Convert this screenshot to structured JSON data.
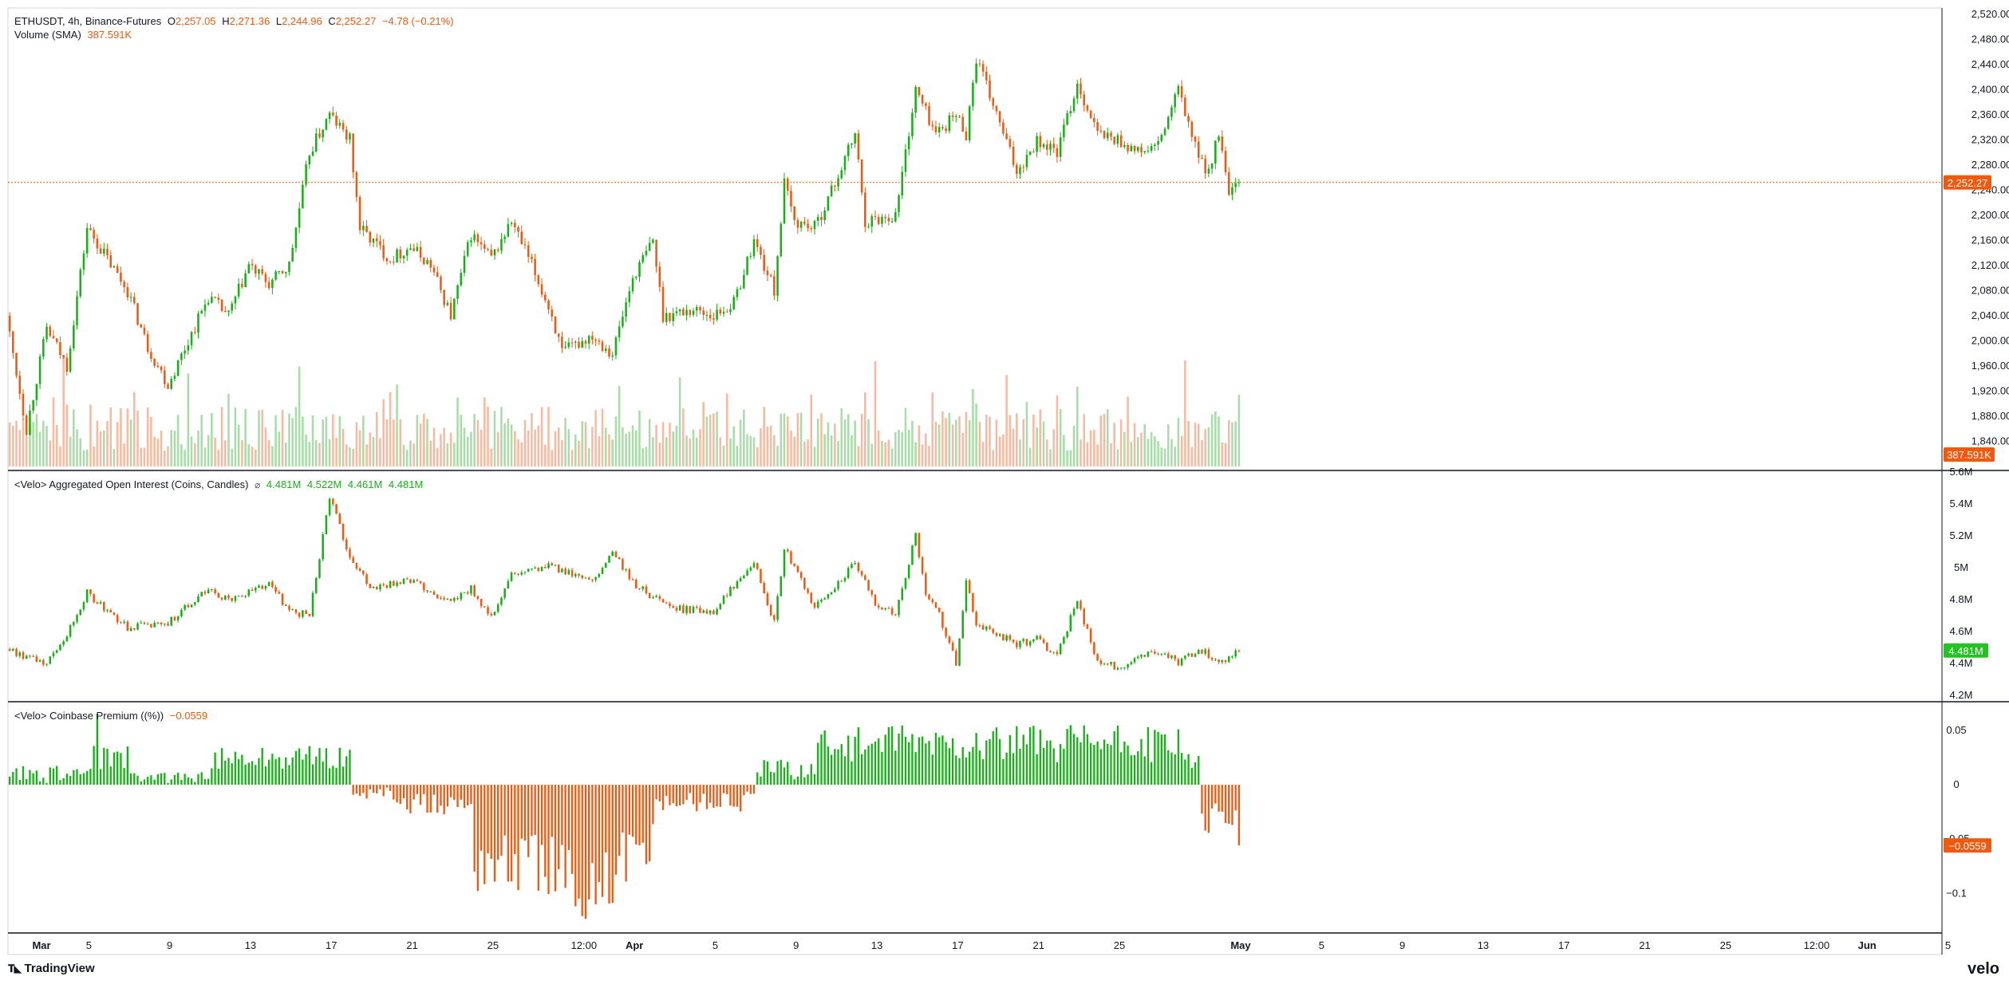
{
  "legend": {
    "symbol": "ETHUSDT, 4h, Binance-Futures",
    "o_label": "O",
    "o_value": "2,257.05",
    "h_label": "H",
    "h_value": "2,271.36",
    "l_label": "L",
    "l_value": "2,244.96",
    "c_label": "C",
    "c_value": "2,252.27",
    "change": "−4.78 (−0.21%)",
    "volume_label": "Volume (SMA)",
    "volume_value": "387.591K",
    "oi_label": "<Velo> Aggregated Open Interest (Coins, Candles)",
    "oi_icon": "link-icon",
    "oi_o": "4.481M",
    "oi_h": "4.522M",
    "oi_l": "4.461M",
    "oi_c": "4.481M",
    "premium_label": "<Velo> Coinbase Premium ((%))",
    "premium_value": "−0.0559"
  },
  "badges": {
    "price": "2,252.27",
    "volume": "387.591K",
    "oi": "4.481M",
    "premium": "−0.0559"
  },
  "colors": {
    "up": "#15b215",
    "down": "#f0590e",
    "volume_up": "#a8dca8",
    "volume_down": "#f7b9a0",
    "oi_badge": "#22c322",
    "price_line": "#f0590e"
  },
  "footer": {
    "brand": "TradingView",
    "brand_icon": "tradingview-logo-icon",
    "velo": "velo"
  },
  "chart_data": [
    {
      "type": "candlestick",
      "name": "price",
      "interval": "4h",
      "ylim": [
        1800,
        2530
      ],
      "y_ticks": [
        "2,520.00",
        "2,480.00",
        "2,440.00",
        "2,400.00",
        "2,360.00",
        "2,320.00",
        "2,280.00",
        "2,240.00",
        "2,200.00",
        "2,160.00",
        "2,120.00",
        "2,080.00",
        "2,040.00",
        "2,000.00",
        "1,960.00",
        "1,920.00",
        "1,880.00",
        "1,840.00"
      ],
      "y_tick_values": [
        2520,
        2480,
        2440,
        2400,
        2360,
        2320,
        2280,
        2240,
        2200,
        2160,
        2120,
        2080,
        2040,
        2000,
        1960,
        1920,
        1880,
        1840
      ],
      "last_close": 2252.27,
      "path_keypoints": [
        {
          "x": "Mar 1",
          "y": 2040
        },
        {
          "x": "Mar 2",
          "y": 1860
        },
        {
          "x": "Mar 3",
          "y": 2020
        },
        {
          "x": "Mar 4",
          "y": 1960
        },
        {
          "x": "Mar 5",
          "y": 2180
        },
        {
          "x": "Mar 7",
          "y": 2080
        },
        {
          "x": "Mar 8",
          "y": 1990
        },
        {
          "x": "Mar 9",
          "y": 1930
        },
        {
          "x": "Mar 10",
          "y": 2000
        },
        {
          "x": "Mar 11",
          "y": 2070
        },
        {
          "x": "Mar 12",
          "y": 2040
        },
        {
          "x": "Mar 13",
          "y": 2120
        },
        {
          "x": "Mar 14",
          "y": 2090
        },
        {
          "x": "Mar 15",
          "y": 2120
        },
        {
          "x": "Mar 16",
          "y": 2300
        },
        {
          "x": "Mar 17",
          "y": 2360
        },
        {
          "x": "Mar 18",
          "y": 2320
        },
        {
          "x": "Mar 18 12:00",
          "y": 2180
        },
        {
          "x": "Mar 20",
          "y": 2130
        },
        {
          "x": "Mar 21",
          "y": 2150
        },
        {
          "x": "Mar 22",
          "y": 2120
        },
        {
          "x": "Mar 23",
          "y": 2040
        },
        {
          "x": "Mar 24",
          "y": 2170
        },
        {
          "x": "Mar 25",
          "y": 2130
        },
        {
          "x": "Mar 26",
          "y": 2190
        },
        {
          "x": "Mar 27",
          "y": 2120
        },
        {
          "x": "Mar 28",
          "y": 2040
        },
        {
          "x": "Mar 28 12:00",
          "y": 1980
        },
        {
          "x": "Mar 30",
          "y": 2010
        },
        {
          "x": "Mar 31",
          "y": 1980
        },
        {
          "x": "Apr 1",
          "y": 2100
        },
        {
          "x": "Apr 2",
          "y": 2160
        },
        {
          "x": "Apr 2 12:00",
          "y": 2040
        },
        {
          "x": "Apr 4",
          "y": 2050
        },
        {
          "x": "Apr 5",
          "y": 2040
        },
        {
          "x": "Apr 6",
          "y": 2060
        },
        {
          "x": "Apr 7",
          "y": 2160
        },
        {
          "x": "Apr 8",
          "y": 2080
        },
        {
          "x": "Apr 8 12:00",
          "y": 2250
        },
        {
          "x": "Apr 9",
          "y": 2190
        },
        {
          "x": "Apr 10",
          "y": 2180
        },
        {
          "x": "Apr 11",
          "y": 2250
        },
        {
          "x": "Apr 12",
          "y": 2330
        },
        {
          "x": "Apr 12 12:00",
          "y": 2190
        },
        {
          "x": "Apr 14",
          "y": 2200
        },
        {
          "x": "Apr 15",
          "y": 2400
        },
        {
          "x": "Apr 16",
          "y": 2330
        },
        {
          "x": "Apr 17",
          "y": 2360
        },
        {
          "x": "Apr 17 12:00",
          "y": 2330
        },
        {
          "x": "Apr 18",
          "y": 2450
        },
        {
          "x": "Apr 19",
          "y": 2360
        },
        {
          "x": "Apr 20",
          "y": 2270
        },
        {
          "x": "Apr 21",
          "y": 2320
        },
        {
          "x": "Apr 22",
          "y": 2300
        },
        {
          "x": "Apr 23",
          "y": 2410
        },
        {
          "x": "Apr 24",
          "y": 2330
        },
        {
          "x": "Apr 25",
          "y": 2320
        },
        {
          "x": "Apr 26",
          "y": 2300
        },
        {
          "x": "Apr 27",
          "y": 2310
        },
        {
          "x": "Apr 28",
          "y": 2400
        },
        {
          "x": "Apr 29",
          "y": 2290
        },
        {
          "x": "Apr 29 12:00",
          "y": 2270
        },
        {
          "x": "Apr 30",
          "y": 2330
        },
        {
          "x": "Apr 30 12:00",
          "y": 2230
        },
        {
          "x": "May 1",
          "y": 2252
        }
      ]
    },
    {
      "type": "bar",
      "name": "volume",
      "label": "Volume (SMA)",
      "last_value": "387.591K"
    },
    {
      "type": "candlestick",
      "name": "open_interest",
      "label": "<Velo> Aggregated Open Interest (Coins, Candles)",
      "ylim": [
        4.17,
        5.6
      ],
      "y_ticks": [
        "5.6M",
        "5.4M",
        "5.2M",
        "5M",
        "4.8M",
        "4.6M",
        "4.4M",
        "4.2M"
      ],
      "y_tick_values": [
        5.6,
        5.4,
        5.2,
        5.0,
        4.8,
        4.6,
        4.4,
        4.2
      ],
      "last_close": 4.481,
      "path_keypoints": [
        {
          "x": "Mar 1",
          "y": 4.49
        },
        {
          "x": "Mar 3",
          "y": 4.4
        },
        {
          "x": "Mar 4",
          "y": 4.58
        },
        {
          "x": "Mar 5",
          "y": 4.84
        },
        {
          "x": "Mar 7",
          "y": 4.62
        },
        {
          "x": "Mar 9",
          "y": 4.66
        },
        {
          "x": "Mar 11",
          "y": 4.86
        },
        {
          "x": "Mar 12",
          "y": 4.8
        },
        {
          "x": "Mar 14",
          "y": 4.9
        },
        {
          "x": "Mar 15",
          "y": 4.73
        },
        {
          "x": "Mar 16",
          "y": 4.7
        },
        {
          "x": "Mar 17",
          "y": 5.45
        },
        {
          "x": "Mar 18",
          "y": 5.05
        },
        {
          "x": "Mar 19",
          "y": 4.88
        },
        {
          "x": "Mar 21",
          "y": 4.92
        },
        {
          "x": "Mar 22",
          "y": 4.85
        },
        {
          "x": "Mar 23",
          "y": 4.78
        },
        {
          "x": "Mar 24",
          "y": 4.87
        },
        {
          "x": "Mar 25",
          "y": 4.68
        },
        {
          "x": "Mar 26",
          "y": 4.95
        },
        {
          "x": "Mar 28",
          "y": 5.01
        },
        {
          "x": "Mar 30",
          "y": 4.9
        },
        {
          "x": "Mar 31",
          "y": 5.1
        },
        {
          "x": "Apr 1",
          "y": 4.9
        },
        {
          "x": "Apr 3",
          "y": 4.74
        },
        {
          "x": "Apr 5",
          "y": 4.73
        },
        {
          "x": "Apr 7",
          "y": 5.05
        },
        {
          "x": "Apr 8",
          "y": 4.65
        },
        {
          "x": "Apr 8 12:00",
          "y": 5.12
        },
        {
          "x": "Apr 10",
          "y": 4.75
        },
        {
          "x": "Apr 12",
          "y": 5.02
        },
        {
          "x": "Apr 13",
          "y": 4.78
        },
        {
          "x": "Apr 14",
          "y": 4.7
        },
        {
          "x": "Apr 15",
          "y": 5.2
        },
        {
          "x": "Apr 15 12:00",
          "y": 4.82
        },
        {
          "x": "Apr 16",
          "y": 4.77
        },
        {
          "x": "Apr 17",
          "y": 4.4
        },
        {
          "x": "Apr 17 12:00",
          "y": 4.92
        },
        {
          "x": "Apr 18",
          "y": 4.65
        },
        {
          "x": "Apr 20",
          "y": 4.52
        },
        {
          "x": "Apr 21",
          "y": 4.55
        },
        {
          "x": "Apr 22",
          "y": 4.45
        },
        {
          "x": "Apr 23",
          "y": 4.8
        },
        {
          "x": "Apr 24",
          "y": 4.4
        },
        {
          "x": "Apr 25",
          "y": 4.38
        },
        {
          "x": "Apr 27",
          "y": 4.48
        },
        {
          "x": "Apr 28",
          "y": 4.4
        },
        {
          "x": "Apr 29",
          "y": 4.49
        },
        {
          "x": "Apr 30",
          "y": 4.41
        },
        {
          "x": "May 1",
          "y": 4.481
        }
      ]
    },
    {
      "type": "bar",
      "name": "coinbase_premium",
      "label": "<Velo> Coinbase Premium ((%))",
      "ylim": [
        -0.135,
        0.075
      ],
      "y_ticks": [
        "0.05",
        "0",
        "−0.05",
        "−0.1"
      ],
      "y_tick_values": [
        0.05,
        0,
        -0.05,
        -0.1
      ],
      "last_value": -0.0559,
      "segments": [
        {
          "from": "Mar 1",
          "to": "Mar 5",
          "base": 0.008
        },
        {
          "from": "Mar 5",
          "to": "Mar 7",
          "base": 0.025,
          "peak": 0.07
        },
        {
          "from": "Mar 7",
          "to": "Mar 11",
          "base": 0.002
        },
        {
          "from": "Mar 11",
          "to": "Mar 18",
          "base": 0.025
        },
        {
          "from": "Mar 18",
          "to": "Mar 20",
          "base": -0.003
        },
        {
          "from": "Mar 20",
          "to": "Mar 24",
          "base": -0.018
        },
        {
          "from": "Mar 24",
          "to": "Mar 28",
          "base": -0.07
        },
        {
          "from": "Mar 28",
          "to": "Mar 31",
          "base": -0.088,
          "trough": -0.12
        },
        {
          "from": "Mar 31",
          "to": "Apr 2",
          "base": -0.065
        },
        {
          "from": "Apr 2",
          "to": "Apr 7",
          "base": -0.015
        },
        {
          "from": "Apr 7",
          "to": "Apr 10",
          "base": 0.015
        },
        {
          "from": "Apr 10",
          "to": "Apr 28",
          "base": 0.038
        },
        {
          "from": "Apr 28",
          "to": "Apr 29",
          "base": 0.02
        },
        {
          "from": "Apr 29",
          "to": "May 1",
          "base": -0.03,
          "trough": -0.058
        }
      ]
    }
  ],
  "x_axis": {
    "ticks": [
      {
        "label": "Mar",
        "bold": true
      },
      {
        "label": "5"
      },
      {
        "label": "9"
      },
      {
        "label": "13"
      },
      {
        "label": "17"
      },
      {
        "label": "21"
      },
      {
        "label": "25"
      },
      {
        "label": "12:00"
      },
      {
        "label": "Apr",
        "bold": true
      },
      {
        "label": "5"
      },
      {
        "label": "9"
      },
      {
        "label": "13"
      },
      {
        "label": "17"
      },
      {
        "label": "21"
      },
      {
        "label": "25"
      },
      {
        "label": "May",
        "bold": true
      },
      {
        "label": "5"
      },
      {
        "label": "9"
      },
      {
        "label": "13"
      },
      {
        "label": "17"
      },
      {
        "label": "21"
      },
      {
        "label": "25"
      },
      {
        "label": "12:00"
      },
      {
        "label": "Jun",
        "bold": true
      },
      {
        "label": "5"
      }
    ]
  }
}
